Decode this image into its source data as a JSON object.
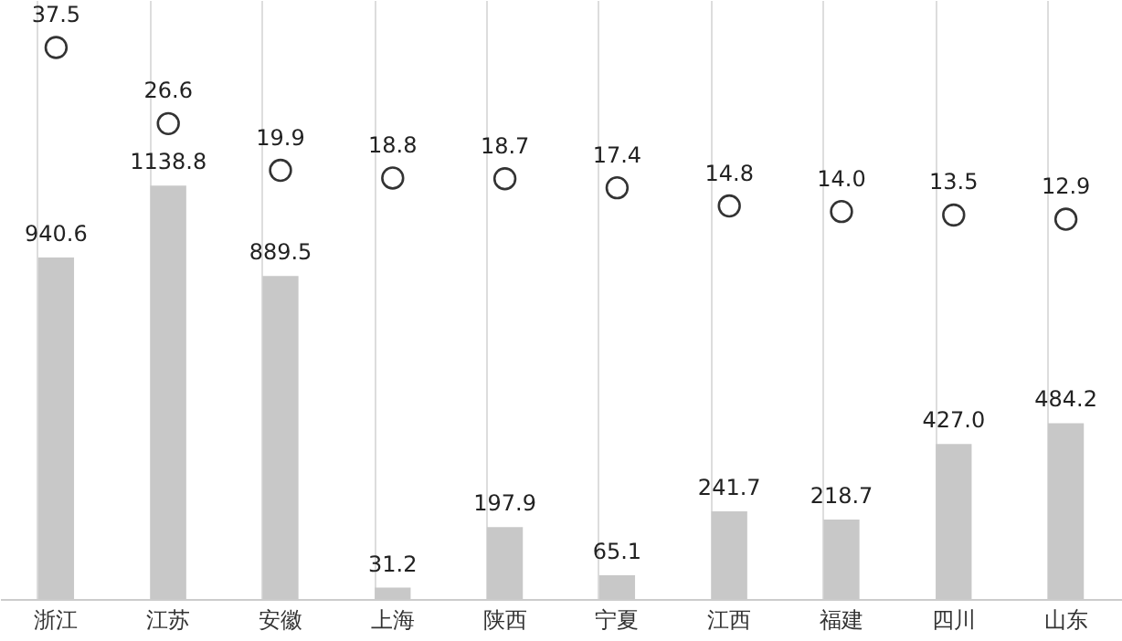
{
  "chart_data": {
    "type": "bar",
    "categories": [
      "浙江",
      "江苏",
      "安徽",
      "上海",
      "陕西",
      "宁夏",
      "江西",
      "福建",
      "四川",
      "山东"
    ],
    "series": [
      {
        "color": "#c8c8c8",
        "values": [
          940.6,
          1138.8,
          889.5,
          31.2,
          197.9,
          65.1,
          241.7,
          218.7,
          427.0,
          484.2
        ],
        "value_labels": [
          "940.6",
          "1138.8",
          "889.5",
          "31.2",
          "197.9",
          "65.1",
          "241.7",
          "218.7",
          "427.0",
          "484.2"
        ]
      },
      {
        "type": "scatter",
        "axis": "y2",
        "color": "#333333",
        "values": [
          37.5,
          26.6,
          19.9,
          18.8,
          18.7,
          17.4,
          14.8,
          14.0,
          13.5,
          12.9
        ],
        "value_labels": [
          "37.5",
          "26.6",
          "19.9",
          "18.8",
          "18.7",
          "17.4",
          "14.8",
          "14.0",
          "13.5",
          "12.9"
        ]
      }
    ],
    "ylim": [
      0,
      1650
    ],
    "y2lim": [
      -41.5,
      44.3
    ],
    "marker": "circle",
    "grid": "x",
    "tick_labels": "x"
  }
}
